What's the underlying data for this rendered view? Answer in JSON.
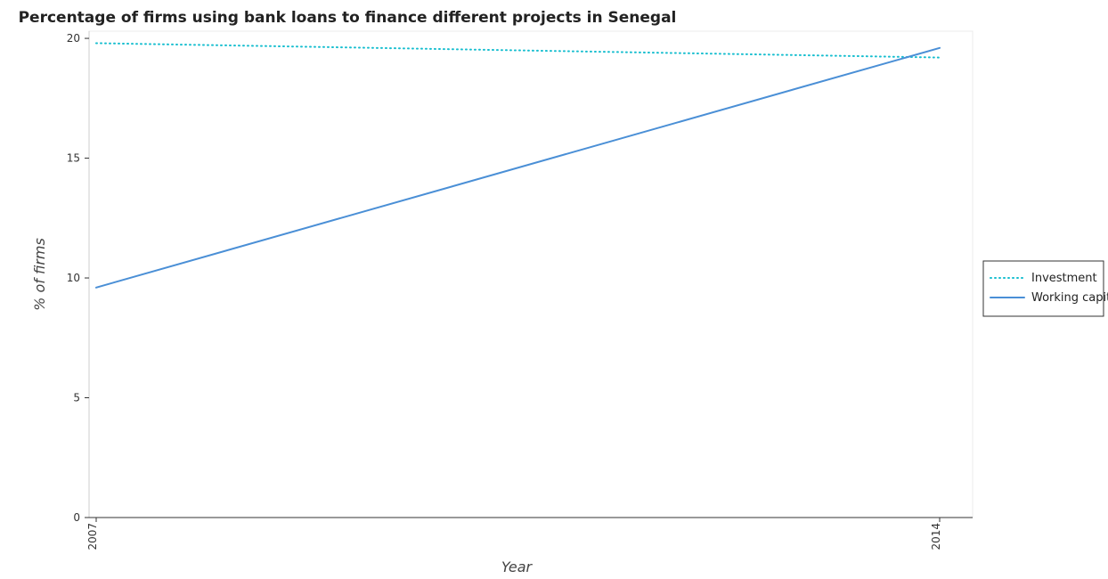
{
  "chart_data": {
    "type": "line",
    "title": "Percentage of firms using bank loans to finance different projects in Senegal",
    "xlabel": "Year",
    "ylabel": "% of firms",
    "categories": [
      "2007",
      "2014"
    ],
    "ylim": [
      0,
      20.3
    ],
    "yticks": [
      0,
      5,
      10,
      15,
      20
    ],
    "grid": false,
    "legend_position": "right",
    "series": [
      {
        "name": "Investment",
        "values": [
          19.8,
          19.2
        ],
        "color": "#17becf",
        "style": "dotted"
      },
      {
        "name": "Working capital",
        "values": [
          9.6,
          19.6
        ],
        "color": "#4a8fd6",
        "style": "solid"
      }
    ]
  }
}
